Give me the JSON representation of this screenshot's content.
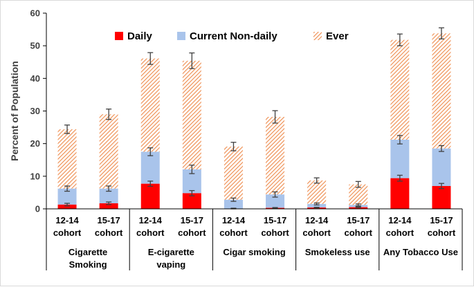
{
  "colors": {
    "daily": "#ff0000",
    "nondaily": "#a9c4eb",
    "ever_stripe": "#ee8a4a",
    "error_bar": "#404040",
    "axis": "#000000"
  },
  "chart_data": {
    "type": "bar",
    "stacked": true,
    "ylabel": "Percent of Population",
    "ylim": [
      0,
      60
    ],
    "yticks": [
      0,
      10,
      20,
      30,
      40,
      50,
      60
    ],
    "grid": false,
    "legend_position": "top",
    "legend": [
      {
        "key": "daily",
        "label": "Daily",
        "color": "#ff0000"
      },
      {
        "key": "nondaily",
        "label": "Current Non-daily",
        "color": "#a9c4eb"
      },
      {
        "key": "ever",
        "label": "Ever",
        "color": "#ee8a4a",
        "pattern": "diagonal-stripes"
      }
    ],
    "groups": [
      {
        "label_lines": [
          "Cigarette",
          "Smoking"
        ],
        "bars": [
          {
            "cohort": [
              "12-14",
              "cohort"
            ],
            "daily": 1.3,
            "daily_err": 0.4,
            "nondaily_top": 6.2,
            "nondaily_err": 0.8,
            "ever_top": 24.4,
            "ever_err": 1.3
          },
          {
            "cohort": [
              "15-17",
              "cohort"
            ],
            "daily": 1.7,
            "daily_err": 0.4,
            "nondaily_top": 6.2,
            "nondaily_err": 0.8,
            "ever_top": 29.0,
            "ever_err": 1.6
          }
        ]
      },
      {
        "label_lines": [
          "E-cigarette",
          "vaping"
        ],
        "bars": [
          {
            "cohort": [
              "12-14",
              "cohort"
            ],
            "daily": 7.7,
            "daily_err": 0.8,
            "nondaily_top": 17.5,
            "nondaily_err": 1.2,
            "ever_top": 46.1,
            "ever_err": 1.8
          },
          {
            "cohort": [
              "15-17",
              "cohort"
            ],
            "daily": 4.8,
            "daily_err": 0.8,
            "nondaily_top": 12.1,
            "nondaily_err": 1.3,
            "ever_top": 45.4,
            "ever_err": 2.4
          }
        ]
      },
      {
        "label_lines": [
          "Cigar smoking"
        ],
        "bars": [
          {
            "cohort": [
              "12-14",
              "cohort"
            ],
            "daily": 0.1,
            "daily_err": 0.1,
            "nondaily_top": 2.8,
            "nondaily_err": 0.5,
            "ever_top": 19.1,
            "ever_err": 1.3
          },
          {
            "cohort": [
              "15-17",
              "cohort"
            ],
            "daily": 0.3,
            "daily_err": 0.1,
            "nondaily_top": 4.4,
            "nondaily_err": 0.8,
            "ever_top": 28.2,
            "ever_err": 1.9
          }
        ]
      },
      {
        "label_lines": [
          "Smokeless use"
        ],
        "bars": [
          {
            "cohort": [
              "12-14",
              "cohort"
            ],
            "daily": 0.4,
            "daily_err": 0.1,
            "nondaily_top": 1.5,
            "nondaily_err": 0.3,
            "ever_top": 8.7,
            "ever_err": 0.8
          },
          {
            "cohort": [
              "15-17",
              "cohort"
            ],
            "daily": 0.5,
            "daily_err": 0.1,
            "nondaily_top": 1.2,
            "nondaily_err": 0.3,
            "ever_top": 7.5,
            "ever_err": 0.9
          }
        ]
      },
      {
        "label_lines": [
          "Any Tobacco Use"
        ],
        "bars": [
          {
            "cohort": [
              "12-14",
              "cohort"
            ],
            "daily": 9.4,
            "daily_err": 0.9,
            "nondaily_top": 21.2,
            "nondaily_err": 1.3,
            "ever_top": 51.8,
            "ever_err": 1.8
          },
          {
            "cohort": [
              "15-17",
              "cohort"
            ],
            "daily": 7.0,
            "daily_err": 0.8,
            "nondaily_top": 18.5,
            "nondaily_err": 0.9,
            "ever_top": 53.8,
            "ever_err": 1.7
          }
        ]
      }
    ]
  }
}
